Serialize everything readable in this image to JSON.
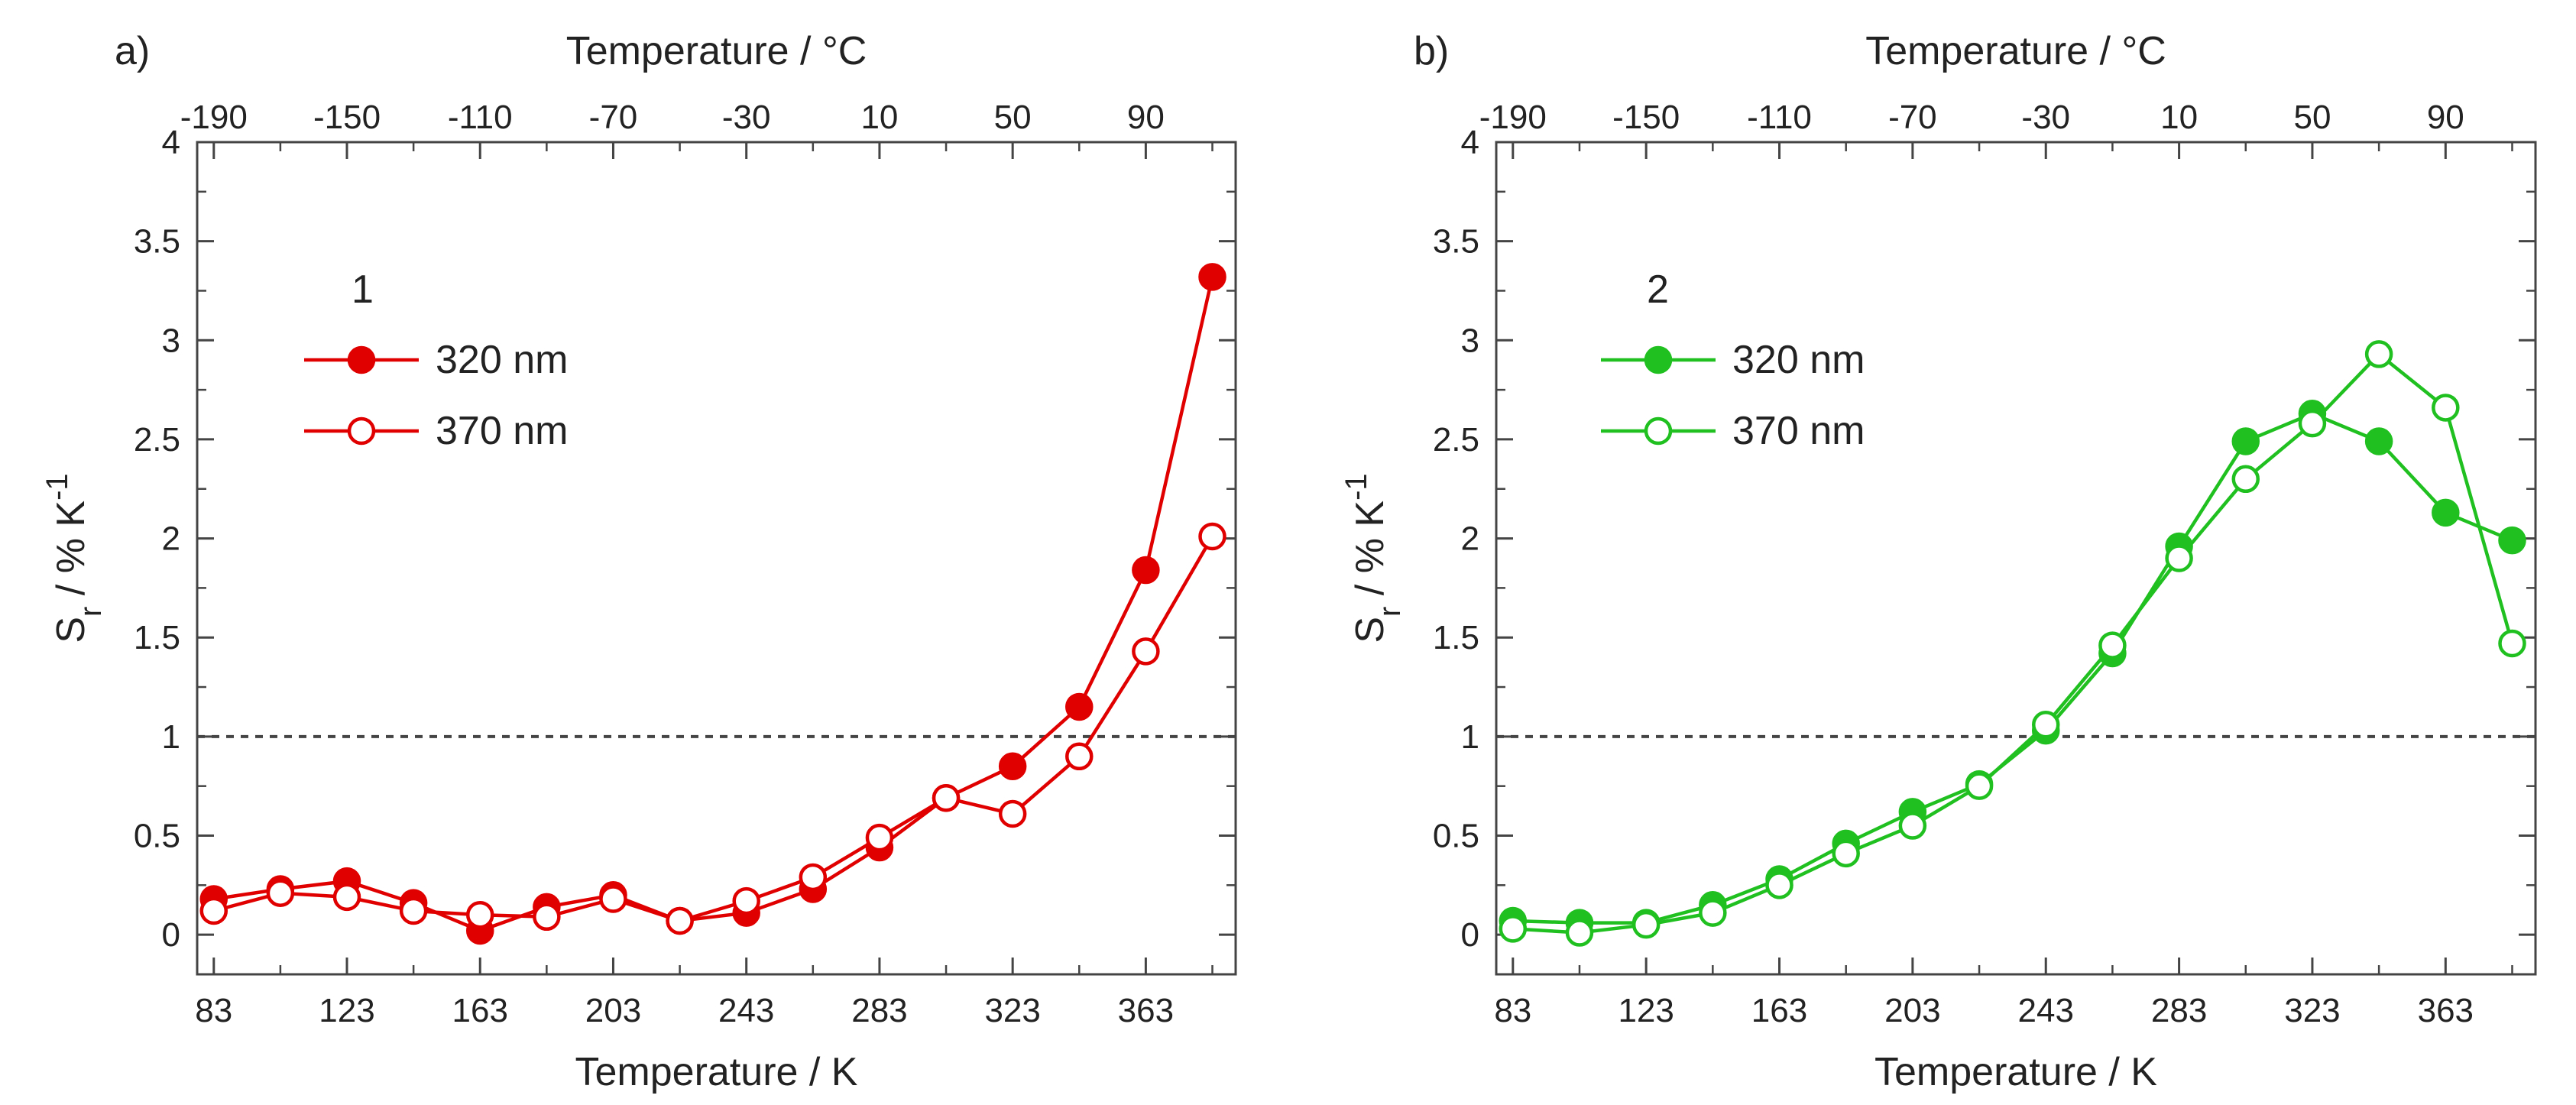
{
  "figure": {
    "x_ticks_K": [
      "83",
      "123",
      "163",
      "203",
      "243",
      "283",
      "323",
      "363"
    ],
    "x_ticks_C": [
      "-190",
      "-150",
      "-110",
      "-70",
      "-30",
      "10",
      "50",
      "90"
    ],
    "y_ticks": [
      "0",
      "0.5",
      "1",
      "1.5",
      "2",
      "2.5",
      "3",
      "3.5",
      "4"
    ]
  },
  "chart_data": [
    {
      "type": "line",
      "panel_label": "a)",
      "compound_label": "1",
      "color": "#e00000",
      "xlabel": "Temperature / K",
      "x2label": "Temperature / °C",
      "ylabel_main": "S",
      "ylabel_sub": "r",
      "ylabel_rest": " / % K",
      "ylabel_sup": "-1",
      "xlim": [
        78,
        390
      ],
      "ylim": [
        -0.2,
        4
      ],
      "reference_line": 1,
      "x": [
        83,
        103,
        123,
        143,
        163,
        183,
        203,
        223,
        243,
        263,
        283,
        303,
        323,
        343,
        363,
        383
      ],
      "series": [
        {
          "name": "320 nm",
          "marker": "filled",
          "values": [
            0.18,
            0.23,
            0.27,
            0.16,
            0.02,
            0.14,
            0.2,
            0.07,
            0.11,
            0.23,
            0.44,
            0.69,
            0.85,
            1.15,
            1.84,
            3.32
          ]
        },
        {
          "name": "370 nm",
          "marker": "open",
          "values": [
            0.12,
            0.21,
            0.19,
            0.12,
            0.1,
            0.09,
            0.18,
            0.07,
            0.17,
            0.29,
            0.49,
            0.69,
            0.61,
            0.9,
            1.43,
            2.01
          ]
        }
      ]
    },
    {
      "type": "line",
      "panel_label": "b)",
      "compound_label": "2",
      "color": "#20c020",
      "xlabel": "Temperature / K",
      "x2label": "Temperature / °C",
      "ylabel_main": "S",
      "ylabel_sub": "r",
      "ylabel_rest": " / % K",
      "ylabel_sup": "-1",
      "xlim": [
        78,
        390
      ],
      "ylim": [
        -0.2,
        4
      ],
      "reference_line": 1,
      "x": [
        83,
        103,
        123,
        143,
        163,
        183,
        203,
        223,
        243,
        263,
        283,
        303,
        323,
        343,
        363,
        383
      ],
      "series": [
        {
          "name": "320 nm",
          "marker": "filled",
          "values": [
            0.07,
            0.06,
            0.06,
            0.15,
            0.28,
            0.46,
            0.62,
            0.76,
            1.03,
            1.42,
            1.96,
            2.49,
            2.63,
            2.49,
            2.13,
            1.99
          ]
        },
        {
          "name": "370 nm",
          "marker": "open",
          "values": [
            0.03,
            0.01,
            0.05,
            0.11,
            0.25,
            0.41,
            0.55,
            0.75,
            1.06,
            1.46,
            1.9,
            2.3,
            2.58,
            2.93,
            2.66,
            1.47
          ]
        }
      ]
    }
  ]
}
